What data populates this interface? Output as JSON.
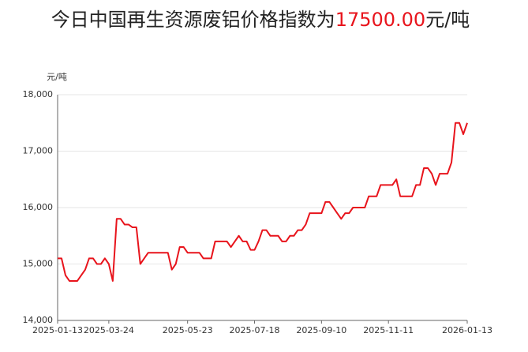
{
  "chart_data": {
    "type": "line",
    "title_prefix": "今日中国再生资源废铝价格指数为",
    "title_value": "17500.00",
    "title_suffix": "元/吨",
    "y_unit": "元/吨",
    "categories": [
      "2025-01-13",
      null,
      null,
      null,
      null,
      null,
      null,
      null,
      null,
      null,
      null,
      null,
      null,
      "2025-03-24",
      null,
      null,
      null,
      null,
      null,
      null,
      null,
      null,
      null,
      null,
      null,
      null,
      null,
      null,
      null,
      null,
      null,
      null,
      null,
      "2025-05-23",
      null,
      null,
      null,
      null,
      null,
      null,
      null,
      null,
      null,
      null,
      null,
      null,
      null,
      null,
      null,
      null,
      "2025-07-18",
      null,
      null,
      null,
      null,
      null,
      null,
      null,
      null,
      null,
      null,
      null,
      null,
      null,
      null,
      null,
      null,
      "2025-09-10",
      null,
      null,
      null,
      null,
      null,
      null,
      null,
      null,
      null,
      null,
      null,
      null,
      null,
      null,
      null,
      null,
      "2025-11-11",
      null,
      null,
      null,
      null,
      null,
      null,
      null,
      null,
      null,
      null,
      null,
      null,
      null,
      null,
      null,
      null,
      null,
      null,
      null,
      "2026-01-13"
    ],
    "series": [
      {
        "name": "废铝价格指数",
        "color": "#e8141c",
        "values": [
          15100,
          15100,
          14800,
          14700,
          14700,
          14700,
          14800,
          14900,
          15100,
          15100,
          15000,
          15000,
          15100,
          15000,
          14700,
          15800,
          15800,
          15700,
          15700,
          15650,
          15650,
          15000,
          15100,
          15200,
          15200,
          15200,
          15200,
          15200,
          15200,
          14900,
          15000,
          15300,
          15300,
          15200,
          15200,
          15200,
          15200,
          15100,
          15100,
          15100,
          15400,
          15400,
          15400,
          15400,
          15300,
          15400,
          15500,
          15400,
          15400,
          15250,
          15250,
          15400,
          15600,
          15600,
          15500,
          15500,
          15500,
          15400,
          15400,
          15500,
          15500,
          15600,
          15600,
          15700,
          15900,
          15900,
          15900,
          15900,
          16100,
          16100,
          16000,
          15900,
          15800,
          15900,
          15900,
          16000,
          16000,
          16000,
          16000,
          16200,
          16200,
          16200,
          16400,
          16400,
          16400,
          16400,
          16500,
          16200,
          16200,
          16200,
          16200,
          16400,
          16400,
          16700,
          16700,
          16600,
          16400,
          16600,
          16600,
          16600,
          16800,
          17500,
          17500,
          17300,
          17500
        ]
      }
    ],
    "ylim": [
      14000,
      18000
    ],
    "yticks": [
      {
        "value": 14000,
        "label": "14,000"
      },
      {
        "value": 15000,
        "label": "15,000"
      },
      {
        "value": 16000,
        "label": "16,000"
      },
      {
        "value": 17000,
        "label": "17,000"
      },
      {
        "value": 18000,
        "label": "18,000"
      }
    ],
    "grid": true
  }
}
